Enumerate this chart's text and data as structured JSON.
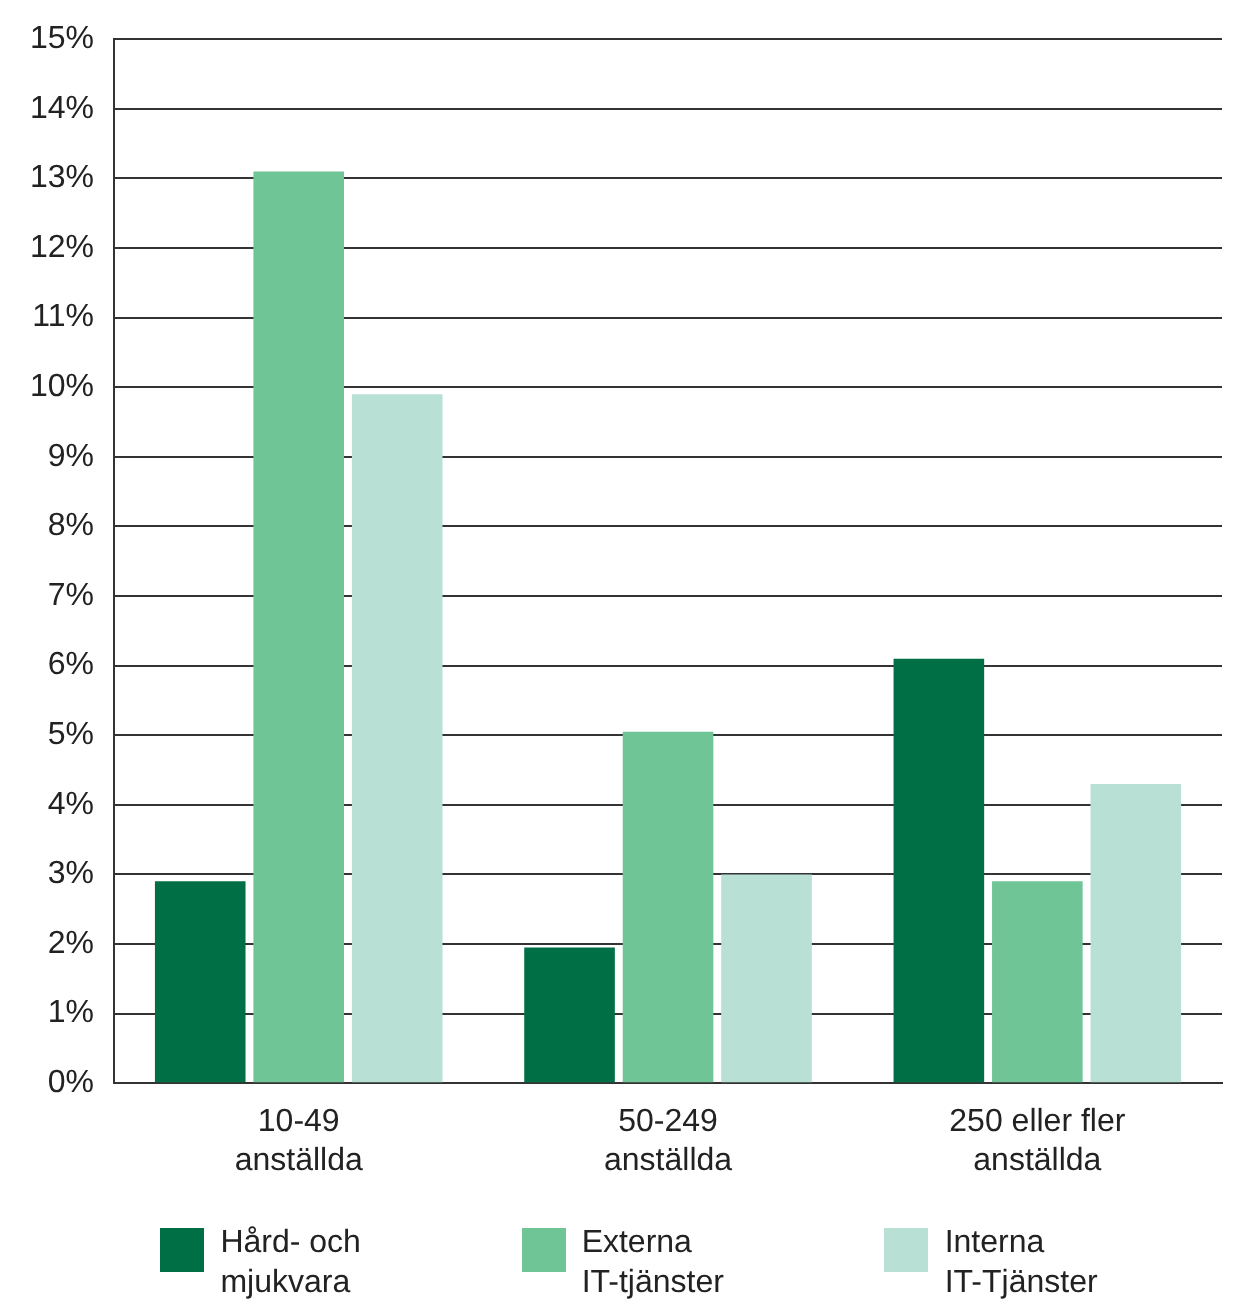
{
  "chart_data": {
    "type": "bar",
    "categories": [
      "10-49\nanställda",
      "50-249\nanställda",
      "250 eller fler\nanställda"
    ],
    "series": [
      {
        "name": "Hård- och\nmjukvara",
        "color": "#006f45",
        "values": [
          2.9,
          1.95,
          6.1
        ]
      },
      {
        "name": "Externa\nIT-tjänster",
        "color": "#6fc596",
        "values": [
          13.1,
          5.05,
          2.9
        ]
      },
      {
        "name": "Interna\nIT-Tjänster",
        "color": "#b9e0d4",
        "values": [
          9.9,
          3.0,
          4.3
        ]
      }
    ],
    "ylim": [
      0,
      15
    ],
    "yticks": [
      {
        "value": 0,
        "label": "0%"
      },
      {
        "value": 1,
        "label": "1%"
      },
      {
        "value": 2,
        "label": "2%"
      },
      {
        "value": 3,
        "label": "3%"
      },
      {
        "value": 4,
        "label": "4%"
      },
      {
        "value": 5,
        "label": "5%"
      },
      {
        "value": 6,
        "label": "6%"
      },
      {
        "value": 7,
        "label": "7%"
      },
      {
        "value": 8,
        "label": "8%"
      },
      {
        "value": 9,
        "label": "9%"
      },
      {
        "value": 10,
        "label": "10%"
      },
      {
        "value": 11,
        "label": "11%"
      },
      {
        "value": 12,
        "label": "12%"
      },
      {
        "value": 13,
        "label": "13%"
      },
      {
        "value": 14,
        "label": "14%"
      },
      {
        "value": 15,
        "label": "15%"
      }
    ],
    "grid": "y",
    "legend": "bottom"
  }
}
